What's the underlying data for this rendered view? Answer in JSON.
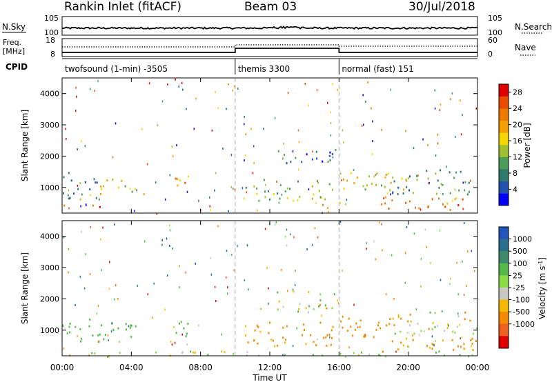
{
  "header": {
    "station": "Rankin Inlet (fitACF)",
    "beam": "Beam 03",
    "date": "30/Jul/2018"
  },
  "nsky_panel": {
    "left_label": "N.Sky",
    "right_label": "N.Search",
    "left_ticks": [
      "10^5",
      "10^0"
    ],
    "right_ticks": [
      "10^5",
      "10^0"
    ]
  },
  "freq_panel": {
    "left_label_line1": "Freq.",
    "left_label_line2": "[MHz]",
    "right_label": "Nave",
    "left_ticks": [
      "18",
      "8"
    ],
    "right_ticks": [
      "60",
      "0"
    ]
  },
  "cpid_panel": {
    "label": "CPID",
    "modes": [
      {
        "name": "twofsound (1-min) -3505",
        "start": 0,
        "end": 10
      },
      {
        "name": "themis 3300",
        "start": 10,
        "end": 16
      },
      {
        "name": "normal (fast) 151",
        "start": 16,
        "end": 24
      }
    ]
  },
  "chart_data": [
    {
      "type": "heatmap",
      "title": "",
      "ylabel": "Slant Range [km]",
      "xlabel": "",
      "xlim": [
        0,
        24
      ],
      "ylim": [
        180,
        4500
      ],
      "yticks": [
        "1000",
        "2000",
        "3000",
        "4000"
      ],
      "colorbar": {
        "label": "Power [dB]",
        "range": [
          0,
          30
        ],
        "tick_labels": [
          "4",
          "8",
          "12",
          "16",
          "20",
          "24",
          "28"
        ],
        "colors": [
          "#0000ff",
          "#2452b0",
          "#2e7a6c",
          "#4c9c5a",
          "#a0c030",
          "#f5d500",
          "#f5a000",
          "#f07a00",
          "#e94b00",
          "#e00000"
        ]
      },
      "echo_regions": [
        {
          "t0": 0.0,
          "t1": 2.7,
          "r0": 350,
          "r1": 500,
          "power": 26
        },
        {
          "t0": 0.0,
          "t1": 2.3,
          "r0": 600,
          "r1": 1500,
          "power": 8
        },
        {
          "t0": 2.0,
          "t1": 4.5,
          "r0": 800,
          "r1": 1300,
          "power": 16
        },
        {
          "t0": 6.0,
          "t1": 7.3,
          "r0": 900,
          "r1": 1400,
          "power": 20
        },
        {
          "t0": 10.5,
          "t1": 15.8,
          "r0": 600,
          "r1": 1300,
          "power": 12
        },
        {
          "t0": 12.4,
          "t1": 15.8,
          "r0": 1700,
          "r1": 2250,
          "power": 6
        },
        {
          "t0": 16.0,
          "t1": 20.0,
          "r0": 800,
          "r1": 1500,
          "power": 16
        },
        {
          "t0": 18.4,
          "t1": 24.0,
          "r0": 300,
          "r1": 700,
          "power": 24
        },
        {
          "t0": 19.0,
          "t1": 24.0,
          "r0": 800,
          "r1": 1600,
          "power": 10
        }
      ]
    },
    {
      "type": "heatmap",
      "title": "",
      "ylabel": "Slant Range [km]",
      "xlabel": "Time UT",
      "xlim": [
        0,
        24
      ],
      "ylim": [
        180,
        4500
      ],
      "xticks": [
        "00:00",
        "04:00",
        "08:00",
        "12:00",
        "16:00",
        "20:00",
        "00:00"
      ],
      "yticks": [
        "1000",
        "2000",
        "3000",
        "4000"
      ],
      "colorbar": {
        "label": "Velocity [m s^-1]",
        "tick_labels": [
          "1000",
          "500",
          "100",
          "25",
          "-25",
          "-100",
          "-500",
          "-1000"
        ],
        "colors": [
          "#2255bb",
          "#2a6f8f",
          "#3d8a6a",
          "#55b84a",
          "#88dd44",
          "#c8c8c0",
          "#f5b800",
          "#f58a00",
          "#f06020",
          "#e00000"
        ]
      },
      "echo_regions": [
        {
          "t0": 0.0,
          "t1": 2.5,
          "r0": 600,
          "r1": 1400,
          "velocity": 300
        },
        {
          "t0": 2.0,
          "t1": 4.5,
          "r0": 800,
          "r1": 1300,
          "velocity": 300
        },
        {
          "t0": 6.0,
          "t1": 7.3,
          "r0": 800,
          "r1": 1400,
          "velocity": 300
        },
        {
          "t0": 0.0,
          "t1": 24.0,
          "r0": 180,
          "r1": 350,
          "velocity": 60
        },
        {
          "t0": 10.5,
          "t1": 15.8,
          "r0": 500,
          "r1": 1300,
          "velocity": -200
        },
        {
          "t0": 12.4,
          "t1": 15.8,
          "r0": 1600,
          "r1": 2300,
          "velocity": 0
        },
        {
          "t0": 16.0,
          "t1": 20.0,
          "r0": 800,
          "r1": 1500,
          "velocity": -300
        },
        {
          "t0": 18.4,
          "t1": 24.0,
          "r0": 300,
          "r1": 800,
          "velocity": -200
        },
        {
          "t0": 19.0,
          "t1": 24.0,
          "r0": 900,
          "r1": 1600,
          "velocity": 0
        }
      ]
    }
  ]
}
